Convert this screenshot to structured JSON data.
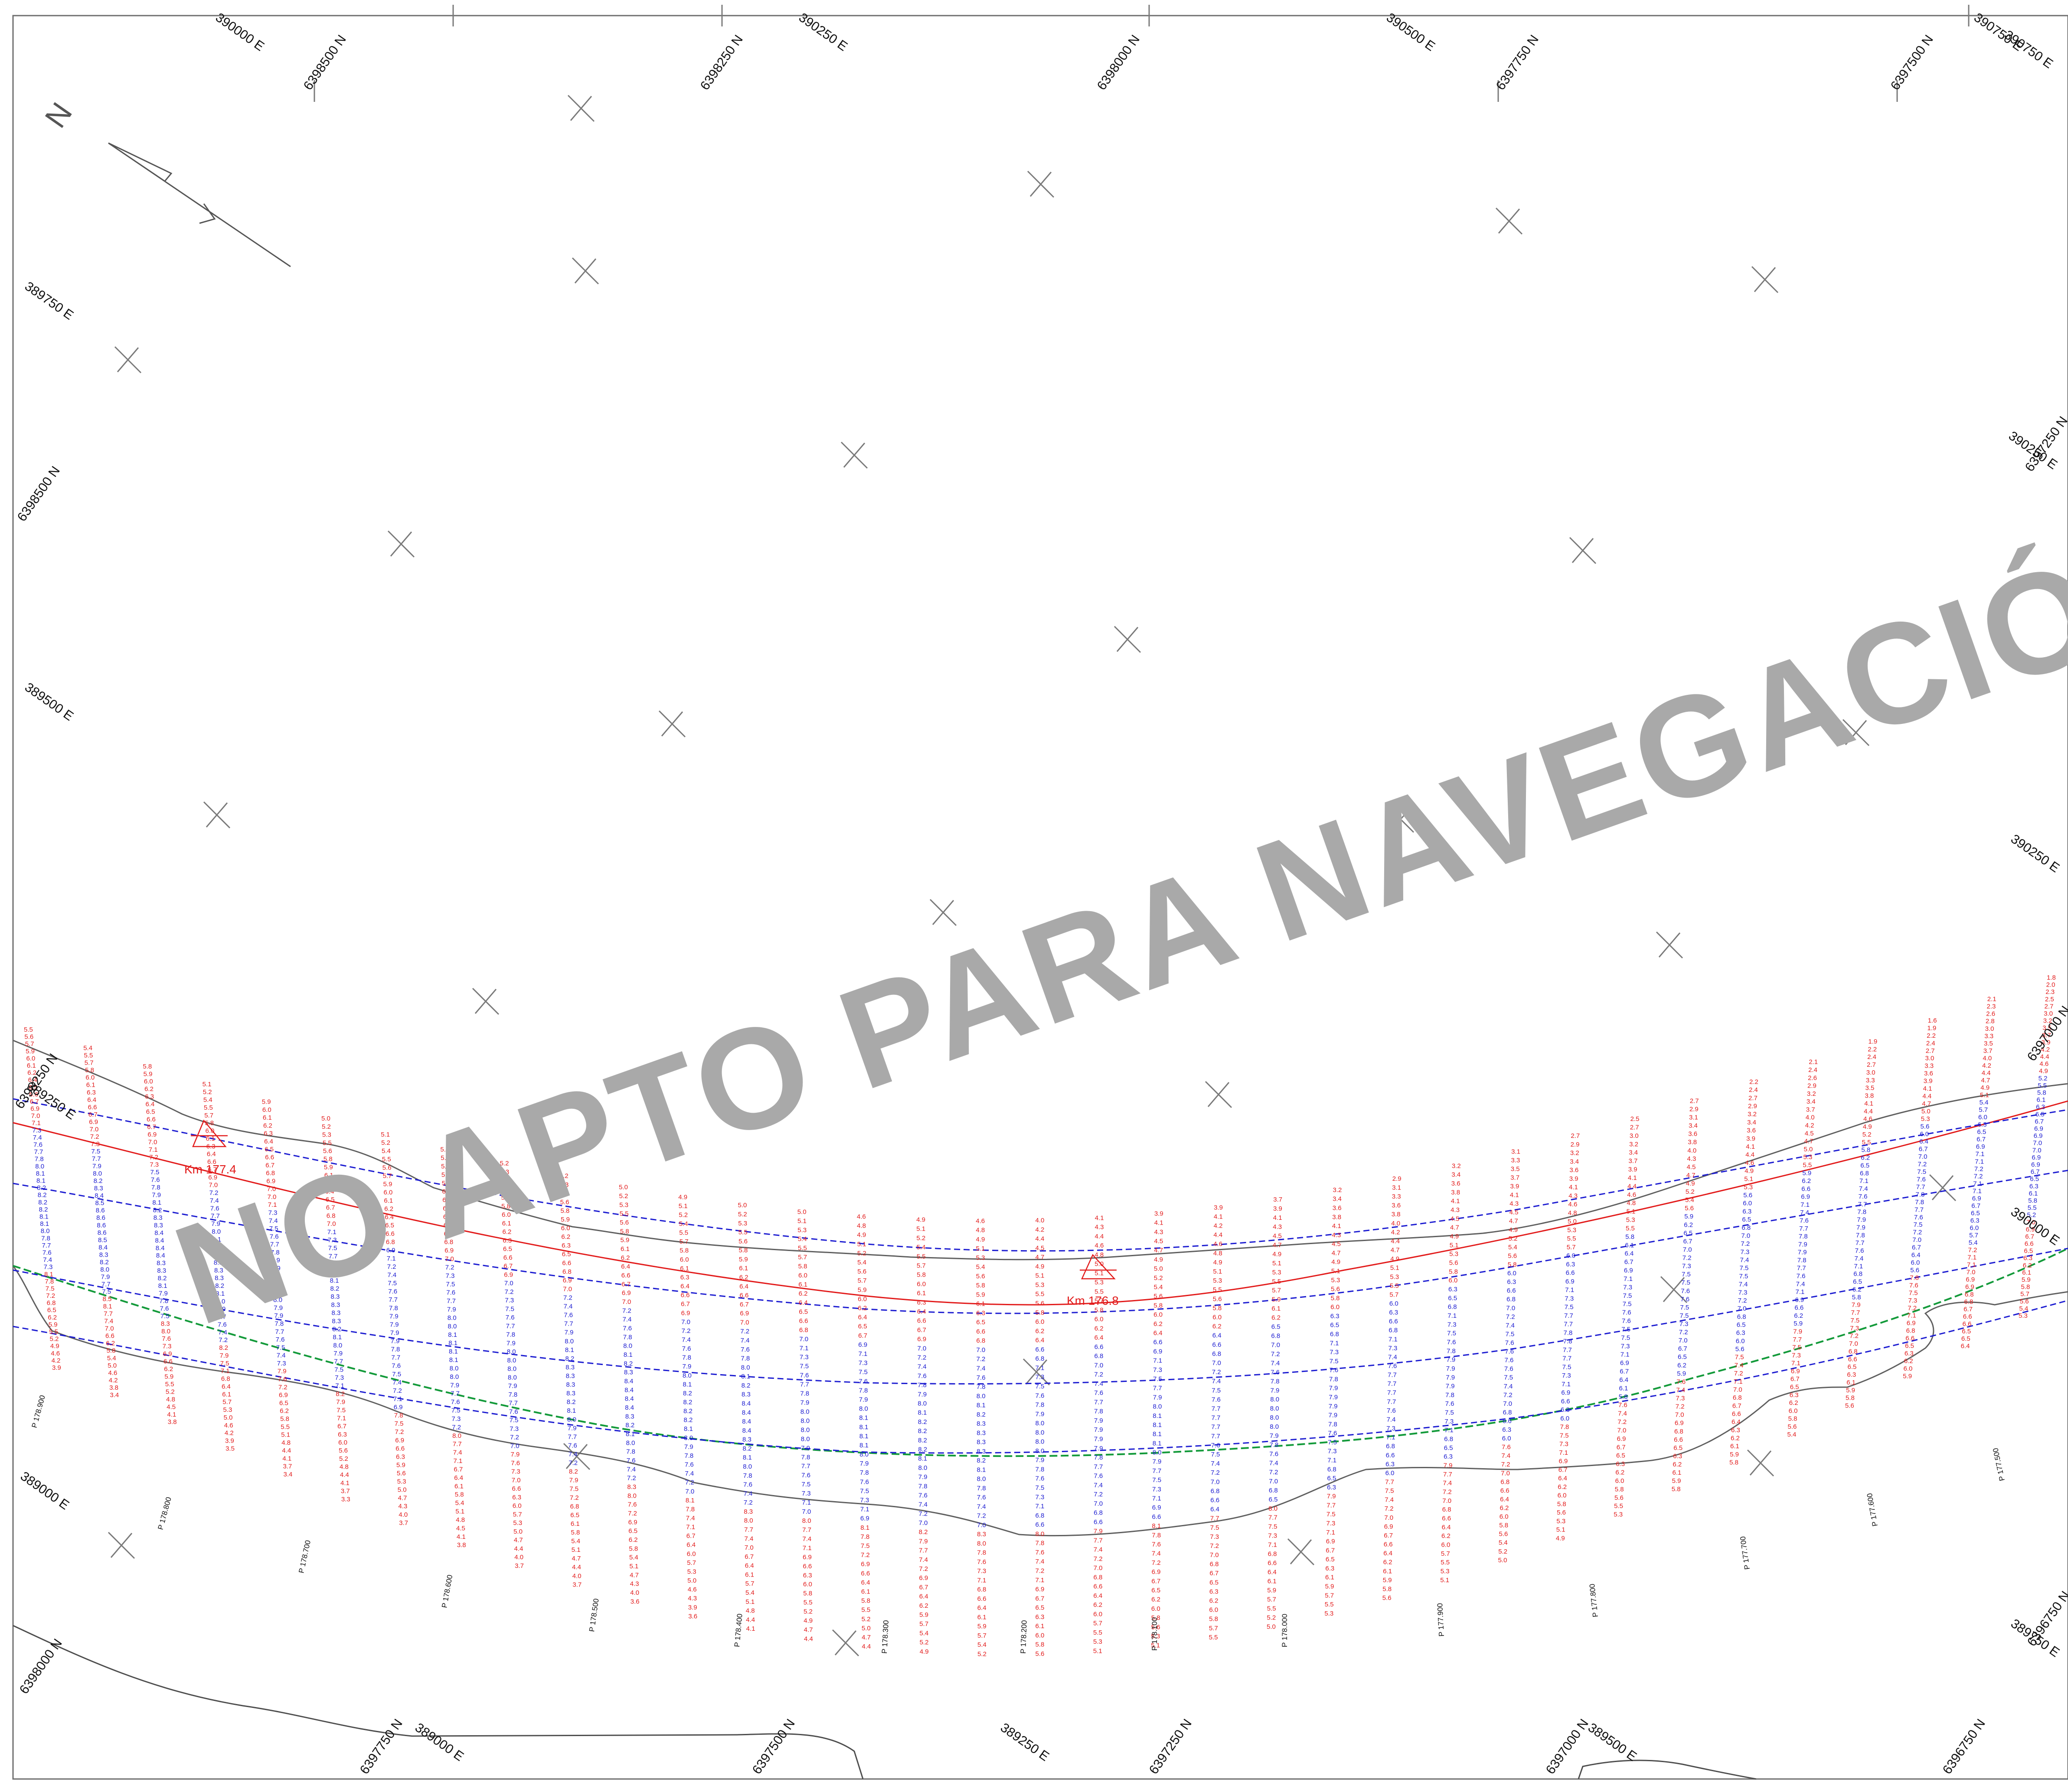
{
  "colors": {
    "frame": "#6d6d6d",
    "grid_cross": "#7a7a7a",
    "coastline": "#4d4d4d",
    "bank_lines": "#5f5f5f",
    "sounding_deep": "#1d1dd1",
    "sounding_shallow": "#e21b1b",
    "channel_axis": "#e21b1b",
    "contour_green": "#139a3a",
    "watermark": "#a9a9a9",
    "text": "#111111"
  },
  "watermark": {
    "text": "NO APTO PARA NAVEGACIÓN-"
  },
  "north_arrow": {
    "symbol": "N",
    "icon": "north-arrow-icon"
  },
  "coordinates": {
    "top": [
      {
        "label": "390000 E"
      },
      {
        "label": "6398500 N"
      },
      {
        "label": "6398250 N"
      },
      {
        "label": "390250 E"
      },
      {
        "label": "6398000 N"
      },
      {
        "label": "390500 E"
      },
      {
        "label": "6397750 N"
      },
      {
        "label": "6397500 N"
      },
      {
        "label": "390750 E"
      },
      {
        "label": "390750 E"
      }
    ],
    "left": [
      {
        "label": "389750 E"
      },
      {
        "label": "6398500 N"
      },
      {
        "label": "389500 E"
      },
      {
        "label": "6398250 N"
      },
      {
        "label": "389250 E"
      },
      {
        "label": "389000 E"
      },
      {
        "label": "6398000 N"
      }
    ],
    "right": [
      {
        "label": "390250 E"
      },
      {
        "label": "6397250 N"
      },
      {
        "label": "390250 E"
      },
      {
        "label": "6397000 N"
      },
      {
        "label": "390000 E"
      },
      {
        "label": "6396750 N"
      },
      {
        "label": "389750 E"
      }
    ],
    "bottom": [
      {
        "label": "6397750 N"
      },
      {
        "label": "389000 E"
      },
      {
        "label": "6397500 N"
      },
      {
        "label": "389250 E"
      },
      {
        "label": "6397250 N"
      },
      {
        "label": "6397000 N"
      },
      {
        "label": "389500 E"
      },
      {
        "label": "6396750 N"
      }
    ]
  },
  "channel_markers": [
    {
      "label": "Km 177.4"
    },
    {
      "label": "Km 176.8"
    }
  ],
  "stations": [
    {
      "label": "P 178.900"
    },
    {
      "label": "P 178.800"
    },
    {
      "label": "P 178.700"
    },
    {
      "label": "P 178.600"
    },
    {
      "label": "P 178.500"
    },
    {
      "label": "P 178.400"
    },
    {
      "label": "P 178.300"
    },
    {
      "label": "P 178.200"
    },
    {
      "label": "P 178.100"
    },
    {
      "label": "P 178.000"
    },
    {
      "label": "P 177.900"
    },
    {
      "label": "P 177.800"
    },
    {
      "label": "P 177.600"
    },
    {
      "label": "P 177.700"
    },
    {
      "label": "P 177.500"
    }
  ],
  "sounding_profiles": [
    {
      "top": 5.5,
      "mid": 8.2,
      "end": 3.9
    },
    {
      "top": 5.4,
      "mid": 8.6,
      "end": 3.4
    },
    {
      "top": 5.8,
      "mid": 8.4,
      "end": 3.8
    },
    {
      "top": 5.1,
      "mid": 8.3,
      "end": 3.5
    },
    {
      "top": 5.9,
      "mid": 8.0,
      "end": 3.4
    },
    {
      "top": 5.0,
      "mid": 8.3,
      "end": 3.3
    },
    {
      "top": 5.1,
      "mid": 7.9,
      "end": 3.7
    },
    {
      "top": 5.4,
      "mid": 8.1,
      "end": 3.8
    },
    {
      "top": 5.2,
      "mid": 8.0,
      "end": 3.7
    },
    {
      "top": 5.2,
      "mid": 8.3,
      "end": 3.7
    },
    {
      "top": 5.0,
      "mid": 8.4,
      "end": 3.6
    },
    {
      "top": 4.9,
      "mid": 8.2,
      "end": 3.6
    },
    {
      "top": 5.0,
      "mid": 8.4,
      "end": 4.1
    },
    {
      "top": 5.0,
      "mid": 8.0,
      "end": 4.4
    },
    {
      "top": 4.6,
      "mid": 8.1,
      "end": 4.4
    },
    {
      "top": 4.9,
      "mid": 8.2,
      "end": 4.9
    },
    {
      "top": 4.6,
      "mid": 8.3,
      "end": 5.2
    },
    {
      "top": 4.0,
      "mid": 8.0,
      "end": 5.6
    },
    {
      "top": 4.1,
      "mid": 7.9,
      "end": 5.1
    },
    {
      "top": 3.9,
      "mid": 8.1,
      "end": 5.1
    },
    {
      "top": 3.9,
      "mid": 7.7,
      "end": 5.5
    },
    {
      "top": 3.7,
      "mid": 8.0,
      "end": 5.0
    },
    {
      "top": 3.2,
      "mid": 7.9,
      "end": 5.3
    },
    {
      "top": 2.9,
      "mid": 7.7,
      "end": 5.6
    },
    {
      "top": 3.2,
      "mid": 7.9,
      "end": 5.1
    },
    {
      "top": 3.1,
      "mid": 7.6,
      "end": 5.0
    },
    {
      "top": 2.7,
      "mid": 7.8,
      "end": 4.9
    },
    {
      "top": 2.5,
      "mid": 7.6,
      "end": 5.3
    },
    {
      "top": 2.7,
      "mid": 7.6,
      "end": 5.8
    },
    {
      "top": 2.2,
      "mid": 7.5,
      "end": 5.8
    },
    {
      "top": 2.1,
      "mid": 7.9,
      "end": 5.4
    },
    {
      "top": 1.9,
      "mid": 7.9,
      "end": 5.6
    },
    {
      "top": 1.6,
      "mid": 7.8,
      "end": 5.9
    },
    {
      "top": 2.1,
      "mid": 7.2,
      "end": 6.4
    },
    {
      "top": 1.8,
      "mid": 7.0,
      "end": 5.3
    }
  ]
}
